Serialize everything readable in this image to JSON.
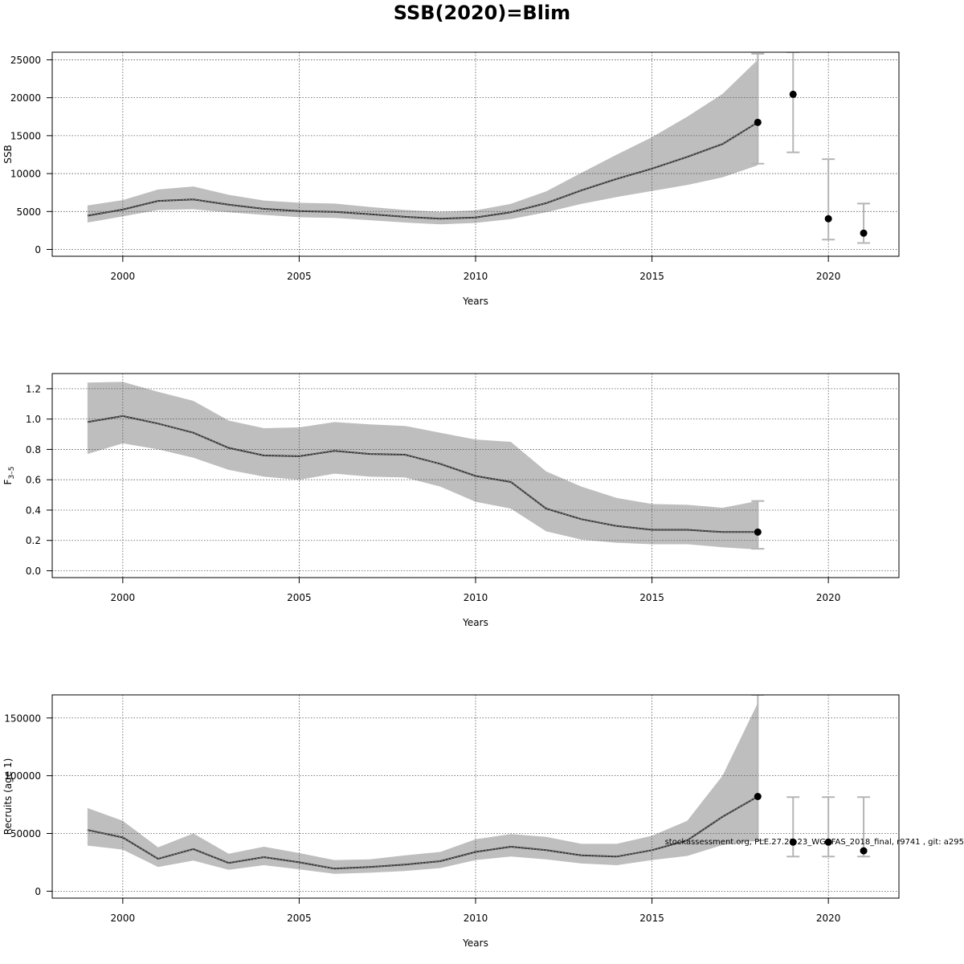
{
  "figure": {
    "title": "SSB(2020)=Blim",
    "credit": "stockassessment.org, PLE.27.21-23_WGBFAS_2018_final, r9741 , git: a295"
  },
  "colors": {
    "band": "#bebebe",
    "line": "#333333",
    "point": "#000000",
    "errorbar": "#b5b5b5",
    "grid": "#555555"
  },
  "chart_data": [
    {
      "type": "line",
      "ylabel": "SSB",
      "xlabel": "Years",
      "xlim": [
        1998,
        2022
      ],
      "ylim": [
        -900,
        26000
      ],
      "xticks": [
        2000,
        2005,
        2010,
        2015,
        2020
      ],
      "yticks": [
        0,
        5000,
        10000,
        15000,
        20000,
        25000
      ],
      "grid": true,
      "series": [
        {
          "x": [
            1999,
            2000,
            2001,
            2002,
            2003,
            2004,
            2005,
            2006,
            2007,
            2008,
            2009,
            2010,
            2011,
            2012,
            2013,
            2014,
            2015,
            2016,
            2017,
            2018
          ],
          "values": [
            4450,
            5250,
            6400,
            6600,
            5900,
            5350,
            5050,
            4950,
            4650,
            4300,
            4050,
            4200,
            4900,
            6100,
            7800,
            9300,
            10650,
            12200,
            13900,
            16750
          ],
          "lower": [
            3550,
            4350,
            5200,
            5300,
            4900,
            4550,
            4250,
            4150,
            3850,
            3550,
            3300,
            3500,
            4000,
            4900,
            6000,
            6900,
            7700,
            8500,
            9500,
            11100
          ],
          "upper": [
            5800,
            6500,
            7900,
            8300,
            7200,
            6450,
            6150,
            6050,
            5600,
            5200,
            4950,
            5150,
            6000,
            7650,
            10100,
            12500,
            14800,
            17500,
            20500,
            25000
          ]
        }
      ],
      "projections": [
        {
          "x": 2018,
          "value": 16750,
          "lower": 11300,
          "upper": 25800
        },
        {
          "x": 2019,
          "value": 20450,
          "lower": 12800,
          "upper": 26000
        },
        {
          "x": 2020,
          "value": 4050,
          "lower": 1300,
          "upper": 11900
        },
        {
          "x": 2021,
          "value": 2150,
          "lower": 850,
          "upper": 6050
        }
      ]
    },
    {
      "type": "line",
      "ylabel": "F3–5",
      "ylabel_main": "F",
      "ylabel_sub": "3–5",
      "xlabel": "Years",
      "xlim": [
        1998,
        2022
      ],
      "ylim": [
        -0.045,
        1.3
      ],
      "xticks": [
        2000,
        2005,
        2010,
        2015,
        2020
      ],
      "yticks": [
        0.0,
        0.2,
        0.4,
        0.6,
        0.8,
        1.0,
        1.2
      ],
      "ytick_labels": [
        "0.0",
        "0.2",
        "0.4",
        "0.6",
        "0.8",
        "1.0",
        "1.2"
      ],
      "grid": true,
      "series": [
        {
          "x": [
            1999,
            2000,
            2001,
            2002,
            2003,
            2004,
            2005,
            2006,
            2007,
            2008,
            2009,
            2010,
            2011,
            2012,
            2013,
            2014,
            2015,
            2016,
            2017,
            2018
          ],
          "values": [
            0.98,
            1.02,
            0.97,
            0.91,
            0.81,
            0.76,
            0.755,
            0.79,
            0.77,
            0.765,
            0.705,
            0.625,
            0.585,
            0.41,
            0.34,
            0.295,
            0.27,
            0.27,
            0.255,
            0.255
          ],
          "lower": [
            0.77,
            0.84,
            0.8,
            0.745,
            0.665,
            0.62,
            0.6,
            0.64,
            0.62,
            0.615,
            0.555,
            0.455,
            0.41,
            0.26,
            0.205,
            0.185,
            0.175,
            0.175,
            0.155,
            0.14
          ],
          "upper": [
            1.24,
            1.245,
            1.18,
            1.12,
            0.99,
            0.94,
            0.945,
            0.98,
            0.965,
            0.955,
            0.91,
            0.865,
            0.85,
            0.655,
            0.555,
            0.48,
            0.44,
            0.435,
            0.415,
            0.46
          ]
        }
      ],
      "projections": [
        {
          "x": 2018,
          "value": 0.255,
          "lower": 0.145,
          "upper": 0.46
        }
      ]
    },
    {
      "type": "line",
      "ylabel": "Recruits (age 1)",
      "xlabel": "Years",
      "xlim": [
        1998,
        2022
      ],
      "ylim": [
        -6000,
        170000
      ],
      "xticks": [
        2000,
        2005,
        2010,
        2015,
        2020
      ],
      "yticks": [
        0,
        50000,
        100000,
        150000
      ],
      "grid": true,
      "series": [
        {
          "x": [
            1999,
            2000,
            2001,
            2002,
            2003,
            2004,
            2005,
            2006,
            2007,
            2008,
            2009,
            2010,
            2011,
            2012,
            2013,
            2014,
            2015,
            2016,
            2017,
            2018
          ],
          "values": [
            53000,
            46500,
            28000,
            36500,
            24500,
            29500,
            25000,
            19500,
            21000,
            23000,
            26000,
            34000,
            38500,
            35500,
            31000,
            30000,
            35500,
            44000,
            64500,
            82000
          ],
          "lower": [
            39500,
            36000,
            21000,
            26500,
            18500,
            22500,
            19000,
            15000,
            16000,
            17500,
            20000,
            27000,
            30000,
            27500,
            24000,
            22500,
            27000,
            30500,
            40000,
            44000
          ],
          "upper": [
            72000,
            61000,
            38000,
            50000,
            32500,
            38500,
            33000,
            27000,
            27500,
            31000,
            34000,
            45000,
            49500,
            47000,
            41000,
            41000,
            48000,
            61000,
            100000,
            163000
          ]
        }
      ],
      "projections": [
        {
          "x": 2018,
          "value": 82000,
          "lower": 44000,
          "upper": 170000
        },
        {
          "x": 2019,
          "value": 42500,
          "lower": 30000,
          "upper": 81500
        },
        {
          "x": 2020,
          "value": 42500,
          "lower": 30000,
          "upper": 81500
        },
        {
          "x": 2021,
          "value": 35000,
          "lower": 30000,
          "upper": 81500
        }
      ]
    }
  ]
}
